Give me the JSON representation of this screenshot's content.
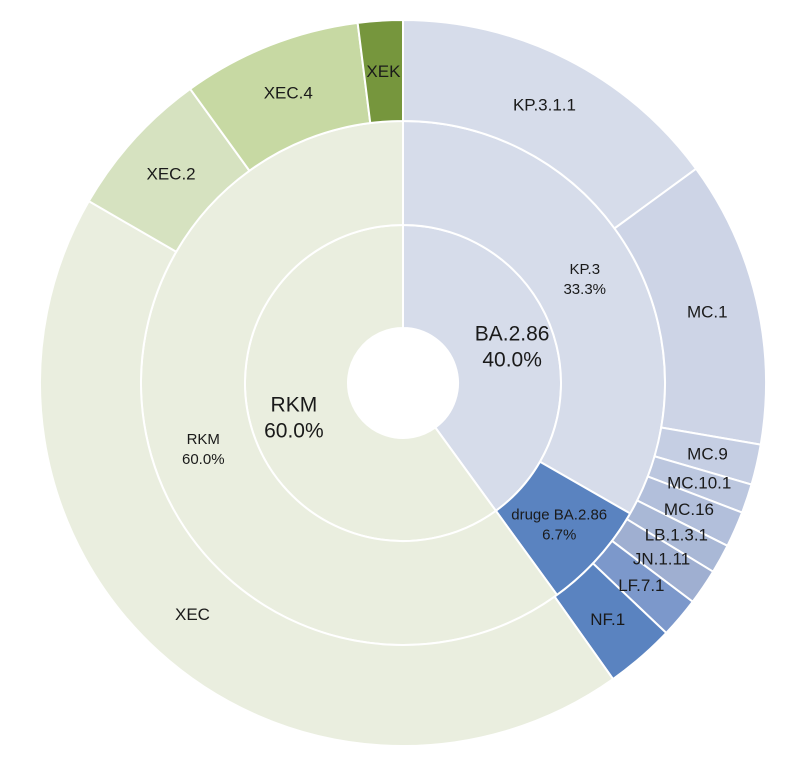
{
  "chart_data": {
    "type": "sunburst",
    "rings": {
      "inner": [
        {
          "name": "BA.2.86",
          "label": "BA.2.86",
          "pct": "40.0%",
          "value": 40.0,
          "color": "#d6dcea"
        },
        {
          "name": "RKM",
          "label": "RKM",
          "pct": "60.0%",
          "value": 60.0,
          "color": "#eaeedf"
        }
      ],
      "middle": [
        {
          "name": "KP.3",
          "label": "KP.3",
          "pct": "33.3%",
          "value": 33.3,
          "color": "#d6dcea"
        },
        {
          "name": "druge BA.2.86",
          "label": "druge BA.2.86",
          "pct": "6.7%",
          "value": 6.7,
          "color": "#5a83c0"
        },
        {
          "name": "RKM",
          "label": "RKM",
          "pct": "60.0%",
          "value": 60.0,
          "color": "#eaeedf"
        }
      ],
      "outer": [
        {
          "label": "KP.3.1.1",
          "value": 15.0,
          "color": "#d6dcea"
        },
        {
          "label": "MC.1",
          "value": 12.8,
          "color": "#cdd4e6"
        },
        {
          "label": "MC.9",
          "value": 1.8,
          "color": "#c5cee3"
        },
        {
          "label": "MC.10.1",
          "value": 1.3,
          "color": "#bcc7df"
        },
        {
          "label": "MC.16",
          "value": 1.6,
          "color": "#b2bfdb"
        },
        {
          "label": "LB.1.3.1",
          "value": 1.3,
          "color": "#a9b8d6"
        },
        {
          "label": "JN.1.11",
          "value": 1.6,
          "color": "#9fafd1"
        },
        {
          "label": "LF.7.1",
          "value": 1.8,
          "color": "#7c98cb"
        },
        {
          "label": "NF.1",
          "value": 3.1,
          "color": "#5a83c0"
        },
        {
          "label": "XEC",
          "value": 43.3,
          "color": "#eaeedf"
        },
        {
          "label": "XEC.2",
          "value": 6.7,
          "color": "#d6e2c0"
        },
        {
          "label": "XEC.4",
          "value": 8.0,
          "color": "#c7d9a3"
        },
        {
          "label": "XEK",
          "value": 2.0,
          "color": "#76963d"
        }
      ]
    }
  }
}
